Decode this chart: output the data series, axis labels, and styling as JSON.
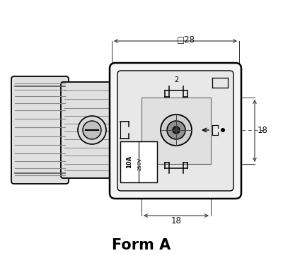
{
  "bg_color": "#ffffff",
  "line_color": "#000000",
  "dark_gray": "#555555",
  "mid_gray": "#999999",
  "light_gray": "#dddddd",
  "fill_gray": "#eeeeee",
  "cable_fill": "#e0e0e0",
  "connector_fill": "#f5f5f5",
  "inner_fill": "#e8e8e8",
  "label_fill": "#ffffff",
  "title": "Form A",
  "dim_28": "□28",
  "dim_18_right": "18",
  "dim_18_bottom": "18"
}
